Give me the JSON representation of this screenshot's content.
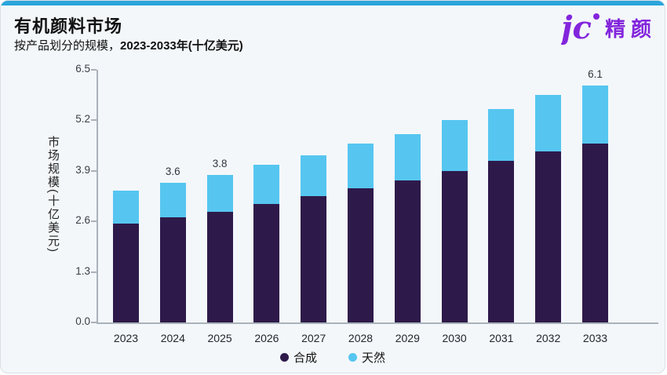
{
  "header": {
    "title": "有机颜料市场",
    "subtitle_regular": "按产品划分的规模，",
    "subtitle_bold": "2023-2033年(十亿美元)"
  },
  "logo": {
    "monogram": "jc",
    "text": "精颜",
    "color": "#8325DC"
  },
  "theme": {
    "accent_color": "#2AA5DC",
    "card_background": "#F3F7FA",
    "axis_color": "#A9B2BA"
  },
  "chart_data": {
    "type": "bar",
    "stacked": true,
    "title": "有机颜料市场",
    "subtitle": "按产品划分的规模，2023-2033年(十亿美元)",
    "xlabel": "",
    "ylabel": "市场规模(十亿美元)",
    "ylim": [
      0,
      6.5
    ],
    "y_ticks": [
      "0.0",
      "1.3",
      "2.6",
      "3.9",
      "5.2",
      "6.5"
    ],
    "grid": false,
    "legend_position": "bottom",
    "categories": [
      "2023",
      "2024",
      "2025",
      "2026",
      "2027",
      "2028",
      "2029",
      "2030",
      "2031",
      "2032",
      "2033"
    ],
    "series": [
      {
        "name": "合成",
        "color": "#2E1A4A",
        "values": [
          2.55,
          2.7,
          2.85,
          3.05,
          3.25,
          3.45,
          3.65,
          3.9,
          4.15,
          4.4,
          4.6
        ]
      },
      {
        "name": "天然",
        "color": "#56C6F0",
        "values": [
          0.85,
          0.9,
          0.95,
          1.0,
          1.05,
          1.15,
          1.2,
          1.3,
          1.35,
          1.45,
          1.5
        ]
      }
    ],
    "totals": [
      3.4,
      3.6,
      3.8,
      4.05,
      4.3,
      4.6,
      4.85,
      5.2,
      5.5,
      5.85,
      6.1
    ],
    "total_labels": [
      "",
      "3.6",
      "3.8",
      "",
      "",
      "",
      "",
      "",
      "",
      "",
      "6.1"
    ]
  }
}
